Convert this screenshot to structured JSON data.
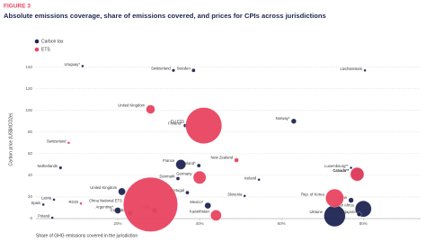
{
  "chart_data": {
    "type": "bubble",
    "figure_label": "FIGURE 3",
    "title": "Absolute emissions coverage, share of emissions covered, and prices for CPIs across jurisdictions",
    "y_label": "Carbon price (US$/tCO2e)",
    "x_label": "Share of GHG emissions covered in the jurisdiction",
    "xlim": [
      0,
      94
    ],
    "ylim": [
      0,
      148
    ],
    "xticks": [
      {
        "value": 20,
        "label": "20%"
      },
      {
        "value": 40,
        "label": "40%"
      },
      {
        "value": 60,
        "label": "60%"
      },
      {
        "value": 80,
        "label": "80%"
      }
    ],
    "yticks": [
      0,
      20,
      40,
      60,
      80,
      100,
      120,
      140
    ],
    "grid": true,
    "series": [
      {
        "name": "Carbon tax",
        "color": "#1f2452",
        "labels": [
          "Uruguay*",
          "Switzerland",
          "Sweden",
          "Liechtenstein",
          "Finland*",
          "Norway*",
          "Netherlands",
          "France",
          "Ireland*",
          "Luxembourg**",
          "Canada**",
          "Denmark",
          "Iceland",
          "Portugal",
          "United Kingdom",
          "Slovenia",
          "Argentina*",
          "Colombia",
          "Chile",
          "Spain",
          "Latvia",
          "Poland",
          "Ukraine",
          "South Africa",
          "Singapore",
          "Japan",
          "Mexico*"
        ],
        "x": [
          11.4,
          33.6,
          38.5,
          80.4,
          36.5,
          63,
          6,
          35.4,
          39.8,
          77,
          78.5,
          34.7,
          54.5,
          37,
          21,
          51,
          20,
          23,
          29,
          1.8,
          4.4,
          4,
          73,
          80,
          79,
          77,
          42
        ],
        "values": [
          141,
          137,
          137,
          137,
          86,
          90,
          47,
          50,
          49,
          47,
          41,
          37,
          36,
          24,
          25,
          21,
          7.5,
          5,
          7.5,
          13,
          17.5,
          0.8,
          2.5,
          9,
          4,
          17,
          12
        ],
        "sizes": [
          10,
          15,
          20,
          2,
          20,
          40,
          15,
          150,
          20,
          5,
          280,
          20,
          3,
          20,
          80,
          5,
          60,
          40,
          40,
          10,
          3,
          10,
          700,
          400,
          30,
          40,
          60
        ]
      },
      {
        "name": "ETS",
        "color": "#e8435f",
        "labels": [
          "EU ETS",
          "United Kingdom",
          "Switzerland",
          "New Zealand",
          "Germany",
          "China National ETS",
          "RGGI",
          "Rep. of Korea",
          "Canada**",
          "Kazakhstan"
        ],
        "x": [
          41,
          28,
          8,
          49,
          40,
          28,
          11,
          73,
          78.5,
          44
        ],
        "values": [
          86,
          101,
          70,
          54,
          38,
          13,
          14,
          19,
          41,
          3
        ],
        "sizes": [
          2000,
          120,
          5,
          30,
          250,
          4500,
          10,
          500,
          280,
          180
        ]
      }
    ]
  }
}
